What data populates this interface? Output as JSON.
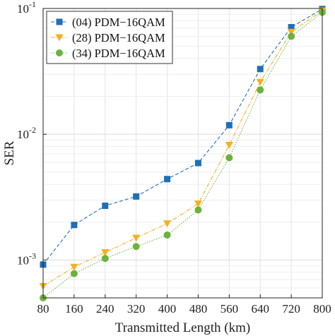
{
  "chart_data": {
    "type": "line",
    "xlabel": "Transmitted Length (km)",
    "ylabel": "SER",
    "x": [
      80,
      160,
      240,
      320,
      400,
      480,
      560,
      640,
      720,
      800
    ],
    "xlim": [
      80,
      800
    ],
    "ylim": [
      0.0005,
      0.1
    ],
    "yscale": "log",
    "yticks": [
      {
        "value": 0.001,
        "base": "10",
        "exp": "-3"
      },
      {
        "value": 0.01,
        "base": "10",
        "exp": "-2"
      },
      {
        "value": 0.1,
        "base": "10",
        "exp": "-1"
      }
    ],
    "grid": true,
    "legend_position": "top-left",
    "series": [
      {
        "name": "(04) PDM−16QAM",
        "color": "#1f6fb8",
        "marker": "square",
        "dash": "5,3",
        "values": [
          0.00092,
          0.0019,
          0.0027,
          0.0032,
          0.0044,
          0.0059,
          0.0118,
          0.033,
          0.071,
          0.099
        ]
      },
      {
        "name": "(28) PDM−16QAM",
        "color": "#f5b021",
        "marker": "triangle-down",
        "dash": "6,2,1.5,2",
        "values": [
          0.00062,
          0.00088,
          0.00115,
          0.0015,
          0.00195,
          0.0028,
          0.0082,
          0.026,
          0.065,
          0.096
        ]
      },
      {
        "name": "(34) PDM−16QAM",
        "color": "#6cb33e",
        "marker": "circle",
        "dash": "1.5,2",
        "values": [
          0.0005,
          0.00078,
          0.00103,
          0.00128,
          0.00158,
          0.0025,
          0.0065,
          0.0225,
          0.06,
          0.093
        ]
      }
    ]
  }
}
